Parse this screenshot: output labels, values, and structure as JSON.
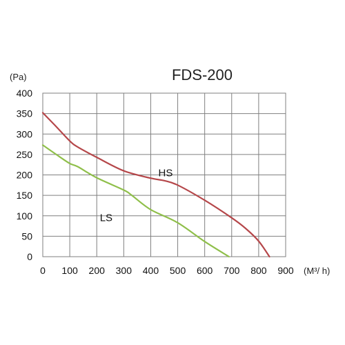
{
  "chart_data": {
    "type": "line",
    "title": "FDS-200",
    "ylabel": "(Pa)",
    "xlabel": "(M³/ h)",
    "xlim": [
      0,
      900
    ],
    "ylim": [
      0,
      400
    ],
    "x_ticks": [
      0,
      100,
      200,
      300,
      400,
      500,
      600,
      700,
      800,
      900
    ],
    "y_ticks": [
      0,
      50,
      100,
      150,
      200,
      250,
      300,
      350,
      400
    ],
    "grid": true,
    "series": [
      {
        "name": "HS",
        "color": "#b5474a",
        "x": [
          0,
          50,
          100,
          130,
          200,
          300,
          400,
          450,
          500,
          600,
          700,
          750,
          800,
          840
        ],
        "y": [
          352,
          318,
          283,
          268,
          243,
          210,
          192,
          186,
          175,
          138,
          95,
          70,
          38,
          0
        ]
      },
      {
        "name": "LS",
        "color": "#8fbf4a",
        "x": [
          0,
          50,
          100,
          130,
          200,
          300,
          330,
          400,
          500,
          600,
          690
        ],
        "y": [
          273,
          250,
          228,
          220,
          193,
          163,
          150,
          115,
          83,
          37,
          0
        ]
      }
    ]
  }
}
